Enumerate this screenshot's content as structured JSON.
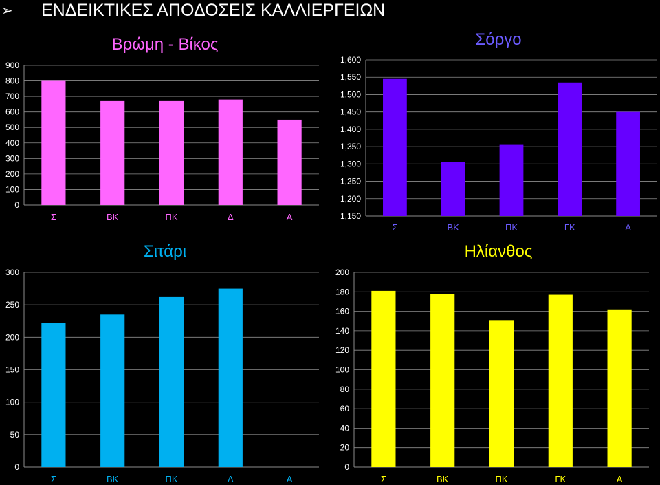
{
  "header": {
    "bullet_icon": "arrow-bullet",
    "title": "ΕΝΔΕΙΚΤΙΚΕΣ ΑΠΟΔΟΣΕΙΣ ΚΑΛΛΙΕΡΓΕΙΩΝ"
  },
  "chart_data": [
    {
      "type": "bar",
      "title": "Βρώμη - Βίκος",
      "categories": [
        "Σ",
        "ΒΚ",
        "ΠΚ",
        "Δ",
        "Α"
      ],
      "values": [
        800,
        670,
        670,
        680,
        550
      ],
      "ylim": [
        0,
        900
      ],
      "ytick_step": 100,
      "ytick_labels": [
        "0",
        "100",
        "200",
        "300",
        "400",
        "500",
        "600",
        "700",
        "800",
        "900"
      ],
      "grid": true,
      "colors": {
        "bar": "#ff66ff",
        "title": "#ff66ff",
        "category": "#ff66ff"
      }
    },
    {
      "type": "bar",
      "title": "Σόργο",
      "categories": [
        "Σ",
        "ΒΚ",
        "ΠΚ",
        "ΓΚ",
        "Α"
      ],
      "values": [
        1545,
        1305,
        1355,
        1535,
        1450
      ],
      "ylim": [
        1150,
        1600
      ],
      "ytick_step": 50,
      "ytick_labels": [
        "1,150",
        "1,200",
        "1,250",
        "1,300",
        "1,350",
        "1,400",
        "1,450",
        "1,500",
        "1,550",
        "1,600"
      ],
      "grid": true,
      "colors": {
        "bar": "#6600ff",
        "title": "#6b5bff",
        "category": "#6b5bff"
      }
    },
    {
      "type": "bar",
      "title": "Σιτάρι",
      "categories": [
        "Σ",
        "ΒΚ",
        "ΠΚ",
        "Δ",
        "Α"
      ],
      "values": [
        222,
        235,
        263,
        275,
        0
      ],
      "ylim": [
        0,
        300
      ],
      "ytick_step": 50,
      "ytick_labels": [
        "0",
        "50",
        "100",
        "150",
        "200",
        "250",
        "300"
      ],
      "grid": true,
      "colors": {
        "bar": "#00b0f0",
        "title": "#00b0f0",
        "category": "#00b0f0"
      }
    },
    {
      "type": "bar",
      "title": "Ηλίανθος",
      "categories": [
        "Σ",
        "ΒΚ",
        "ΠΚ",
        "ΓΚ",
        "Α"
      ],
      "values": [
        181,
        178,
        151,
        177,
        162
      ],
      "ylim": [
        0,
        200
      ],
      "ytick_step": 20,
      "ytick_labels": [
        "0",
        "20",
        "40",
        "60",
        "80",
        "100",
        "120",
        "140",
        "160",
        "180",
        "200"
      ],
      "grid": true,
      "colors": {
        "bar": "#ffff00",
        "title": "#ffff00",
        "category": "#ffff00"
      }
    }
  ]
}
